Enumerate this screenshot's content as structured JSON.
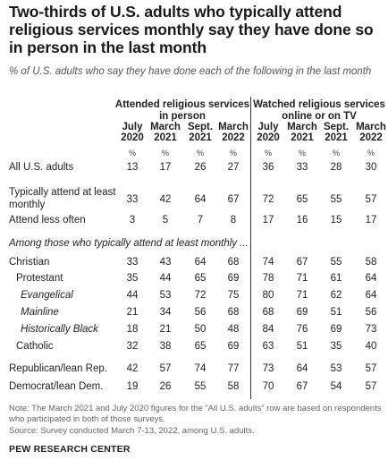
{
  "title": "Two-thirds of U.S. adults who typically attend religious services monthly say they have done so in person in the last month",
  "subtitle": "% of U.S. adults who say they have done each of the following in the last month",
  "chart_data": {
    "type": "table",
    "groups": [
      {
        "label": "Attended religious services in person"
      },
      {
        "label": "Watched religious services online or on TV"
      }
    ],
    "columns": [
      {
        "line1": "July",
        "line2": "2020"
      },
      {
        "line1": "March",
        "line2": "2021"
      },
      {
        "line1": "Sept.",
        "line2": "2021"
      },
      {
        "line1": "March",
        "line2": "2022"
      },
      {
        "line1": "July",
        "line2": "2020"
      },
      {
        "line1": "March",
        "line2": "2021"
      },
      {
        "line1": "Sept.",
        "line2": "2021"
      },
      {
        "line1": "March",
        "line2": "2022"
      }
    ],
    "percent_marker": "%",
    "section_label": "Among those who typically attend at least monthly ...",
    "rows": [
      {
        "label": "All U.S. adults",
        "values": [
          13,
          17,
          26,
          27,
          36,
          33,
          28,
          30
        ]
      },
      {
        "label": "Typically attend at least monthly",
        "values": [
          33,
          42,
          64,
          67,
          72,
          65,
          55,
          57
        ]
      },
      {
        "label": "Attend less often",
        "values": [
          3,
          5,
          7,
          8,
          17,
          16,
          15,
          17
        ]
      },
      {
        "label": "Christian",
        "values": [
          33,
          43,
          64,
          68,
          74,
          67,
          55,
          58
        ]
      },
      {
        "label": "Protestant",
        "values": [
          35,
          44,
          65,
          69,
          78,
          71,
          61,
          64
        ]
      },
      {
        "label": "Evangelical",
        "values": [
          44,
          53,
          72,
          75,
          80,
          71,
          62,
          64
        ]
      },
      {
        "label": "Mainline",
        "values": [
          21,
          34,
          56,
          68,
          68,
          69,
          51,
          56
        ]
      },
      {
        "label": "Historically Black",
        "values": [
          18,
          21,
          50,
          48,
          84,
          76,
          69,
          73
        ]
      },
      {
        "label": "Catholic",
        "values": [
          32,
          38,
          65,
          69,
          63,
          51,
          35,
          40
        ]
      },
      {
        "label": "Republican/lean Rep.",
        "values": [
          42,
          57,
          74,
          77,
          73,
          64,
          53,
          57
        ]
      },
      {
        "label": "Democrat/lean Dem.",
        "values": [
          19,
          26,
          55,
          58,
          70,
          67,
          54,
          57
        ]
      }
    ]
  },
  "note": "Note: The March 2021 and July 2020 figures for the “All U.S. adults” row are based on respondents who participated in both of those surveys.",
  "source": "Source: Survey conducted March 7-13, 2022, among U.S. adults.",
  "brand": "PEW RESEARCH CENTER"
}
